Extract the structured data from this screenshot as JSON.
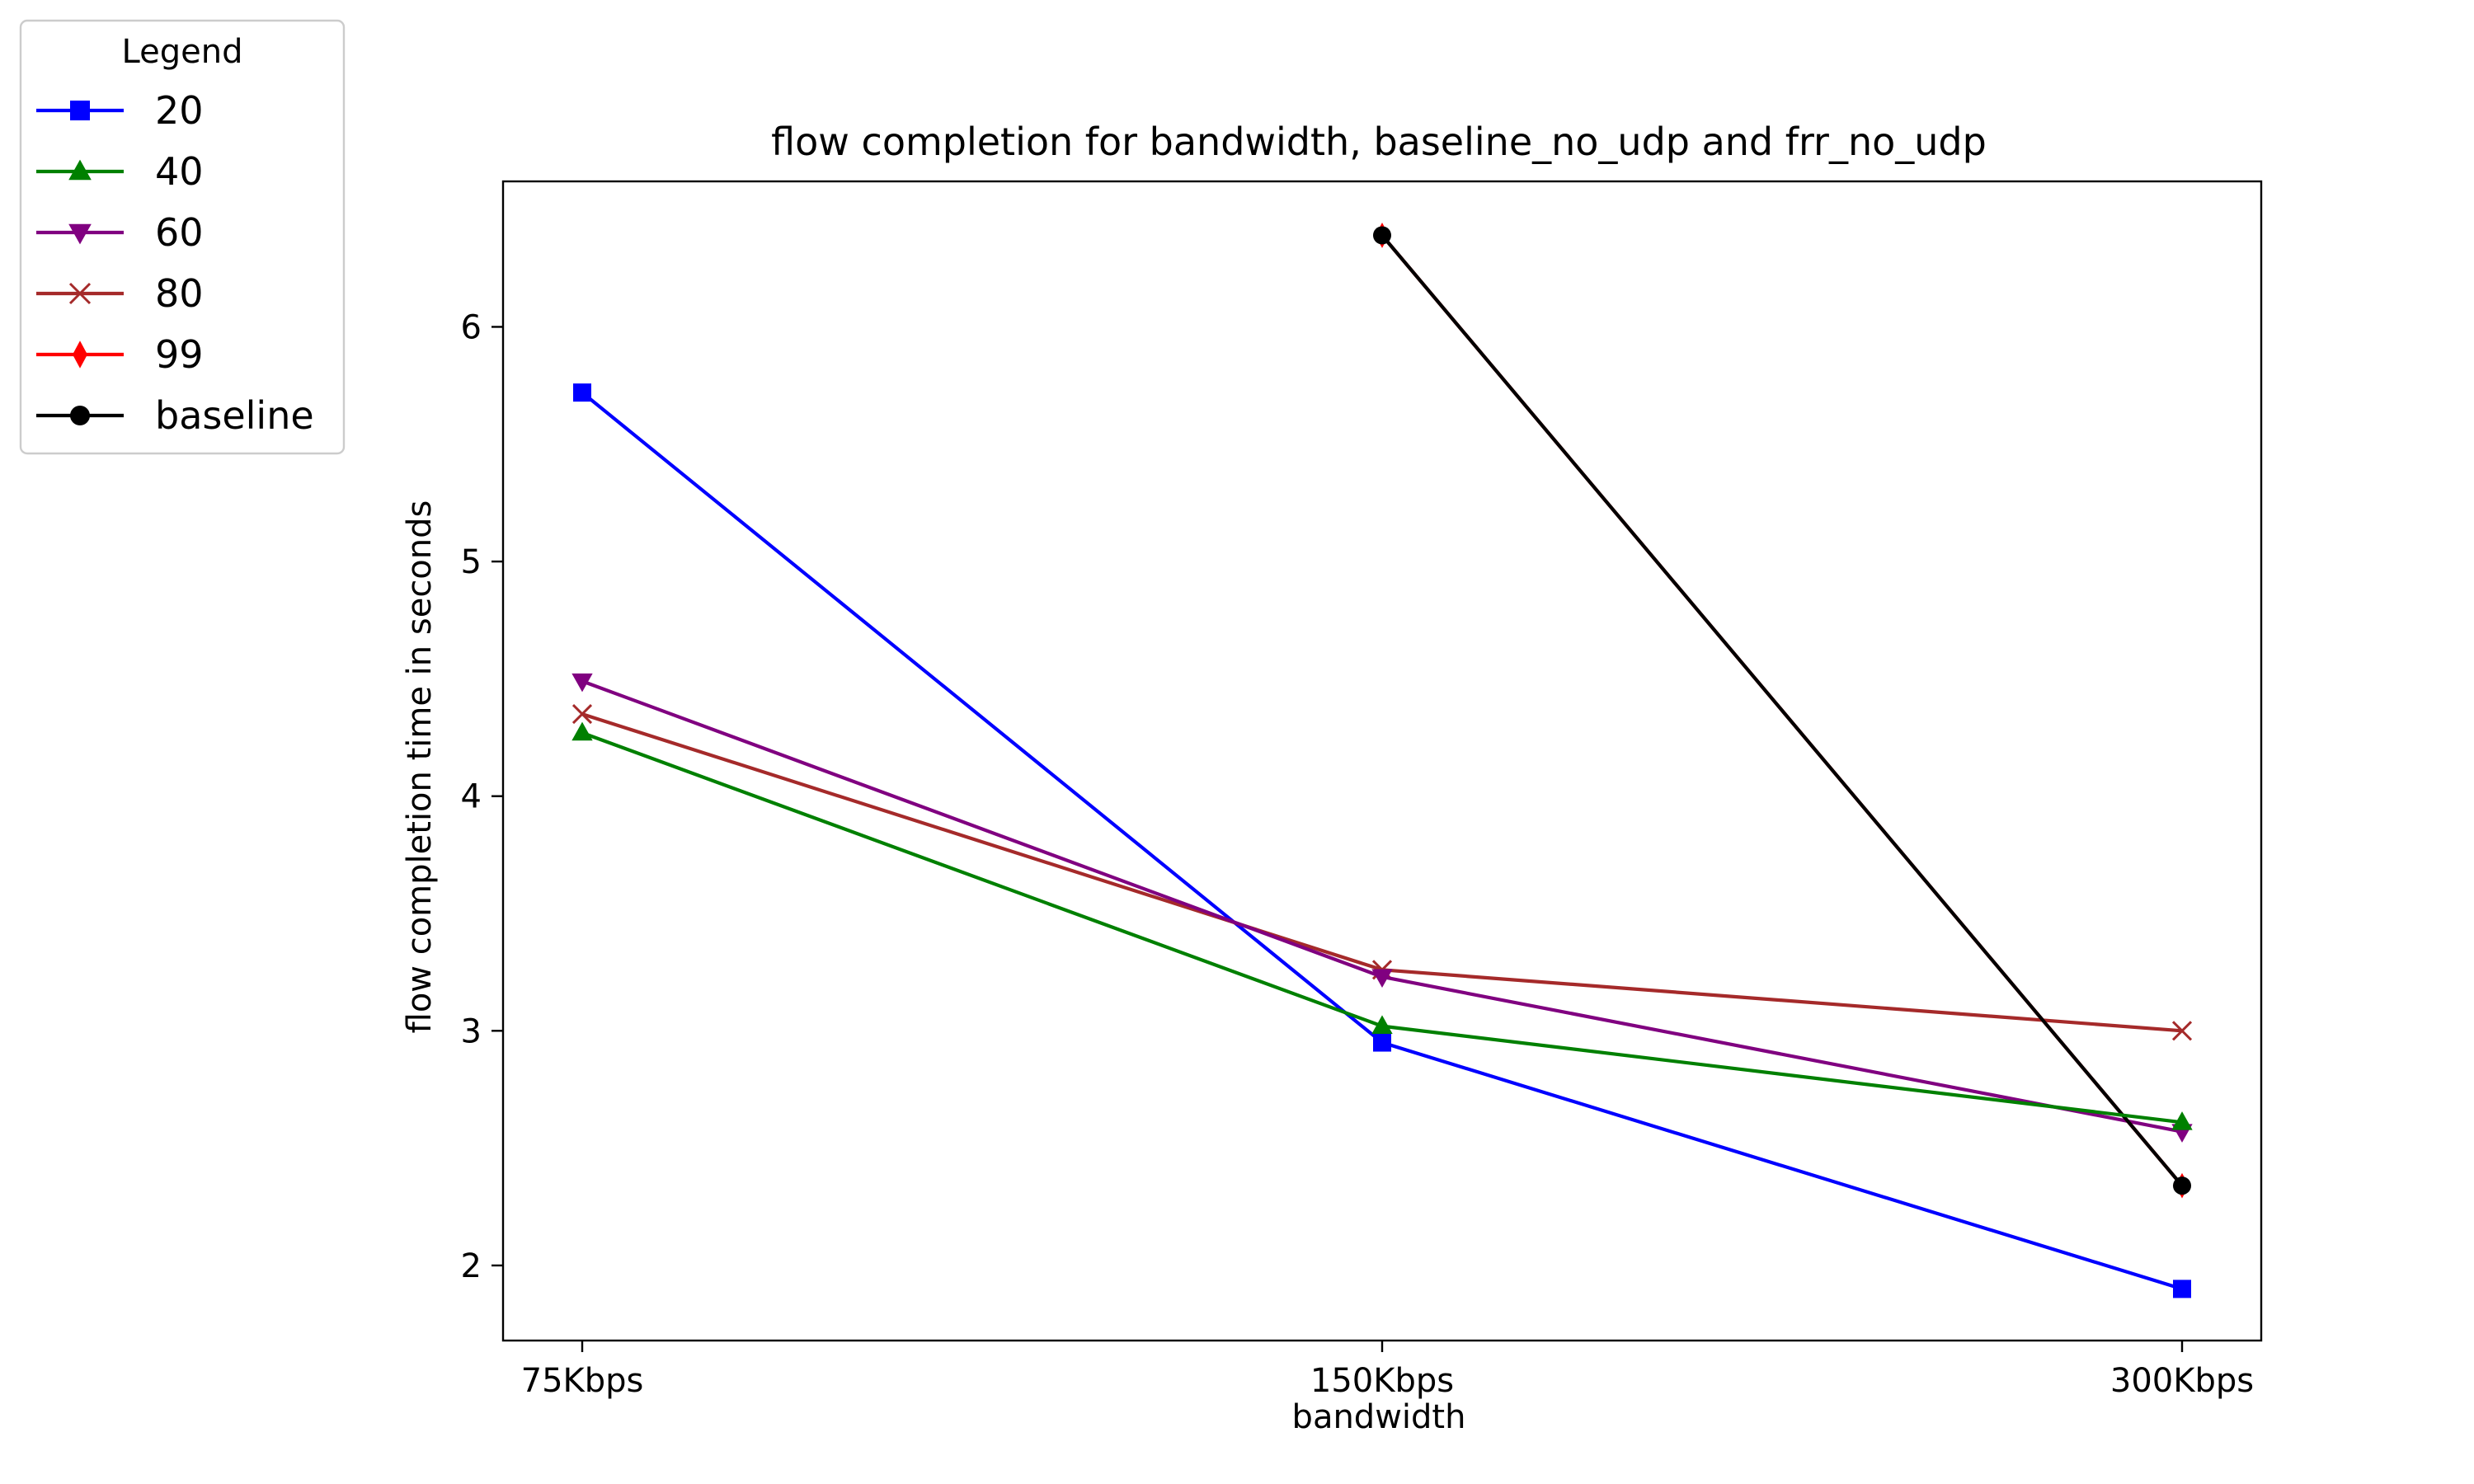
{
  "chart_data": {
    "type": "line",
    "title": "flow completion for bandwidth, baseline_no_udp and frr_no_udp",
    "xlabel": "bandwidth",
    "ylabel": "flow completion time in seconds",
    "categories": [
      "75Kbps",
      "150Kbps",
      "300Kbps"
    ],
    "ylim": [
      1.68,
      6.62
    ],
    "yticks": [
      2,
      3,
      4,
      5,
      6
    ],
    "grid": false,
    "legend": {
      "title": "Legend",
      "placement": "outside-top-left"
    },
    "series": [
      {
        "name": "20",
        "color": "#0000ff",
        "marker": "square",
        "values": [
          5.72,
          2.95,
          1.9
        ]
      },
      {
        "name": "40",
        "color": "#008000",
        "marker": "triangle-up",
        "values": [
          4.27,
          3.02,
          2.61
        ]
      },
      {
        "name": "60",
        "color": "#800080",
        "marker": "triangle-down",
        "values": [
          4.49,
          3.23,
          2.57
        ]
      },
      {
        "name": "80",
        "color": "#a52a2a",
        "marker": "x",
        "values": [
          4.35,
          3.26,
          3.0
        ]
      },
      {
        "name": "99",
        "color": "#ff0000",
        "marker": "thin-diamond",
        "values": [
          null,
          6.39,
          2.34
        ]
      },
      {
        "name": "baseline",
        "color": "#000000",
        "marker": "circle",
        "values": [
          null,
          6.39,
          2.34
        ]
      }
    ]
  }
}
